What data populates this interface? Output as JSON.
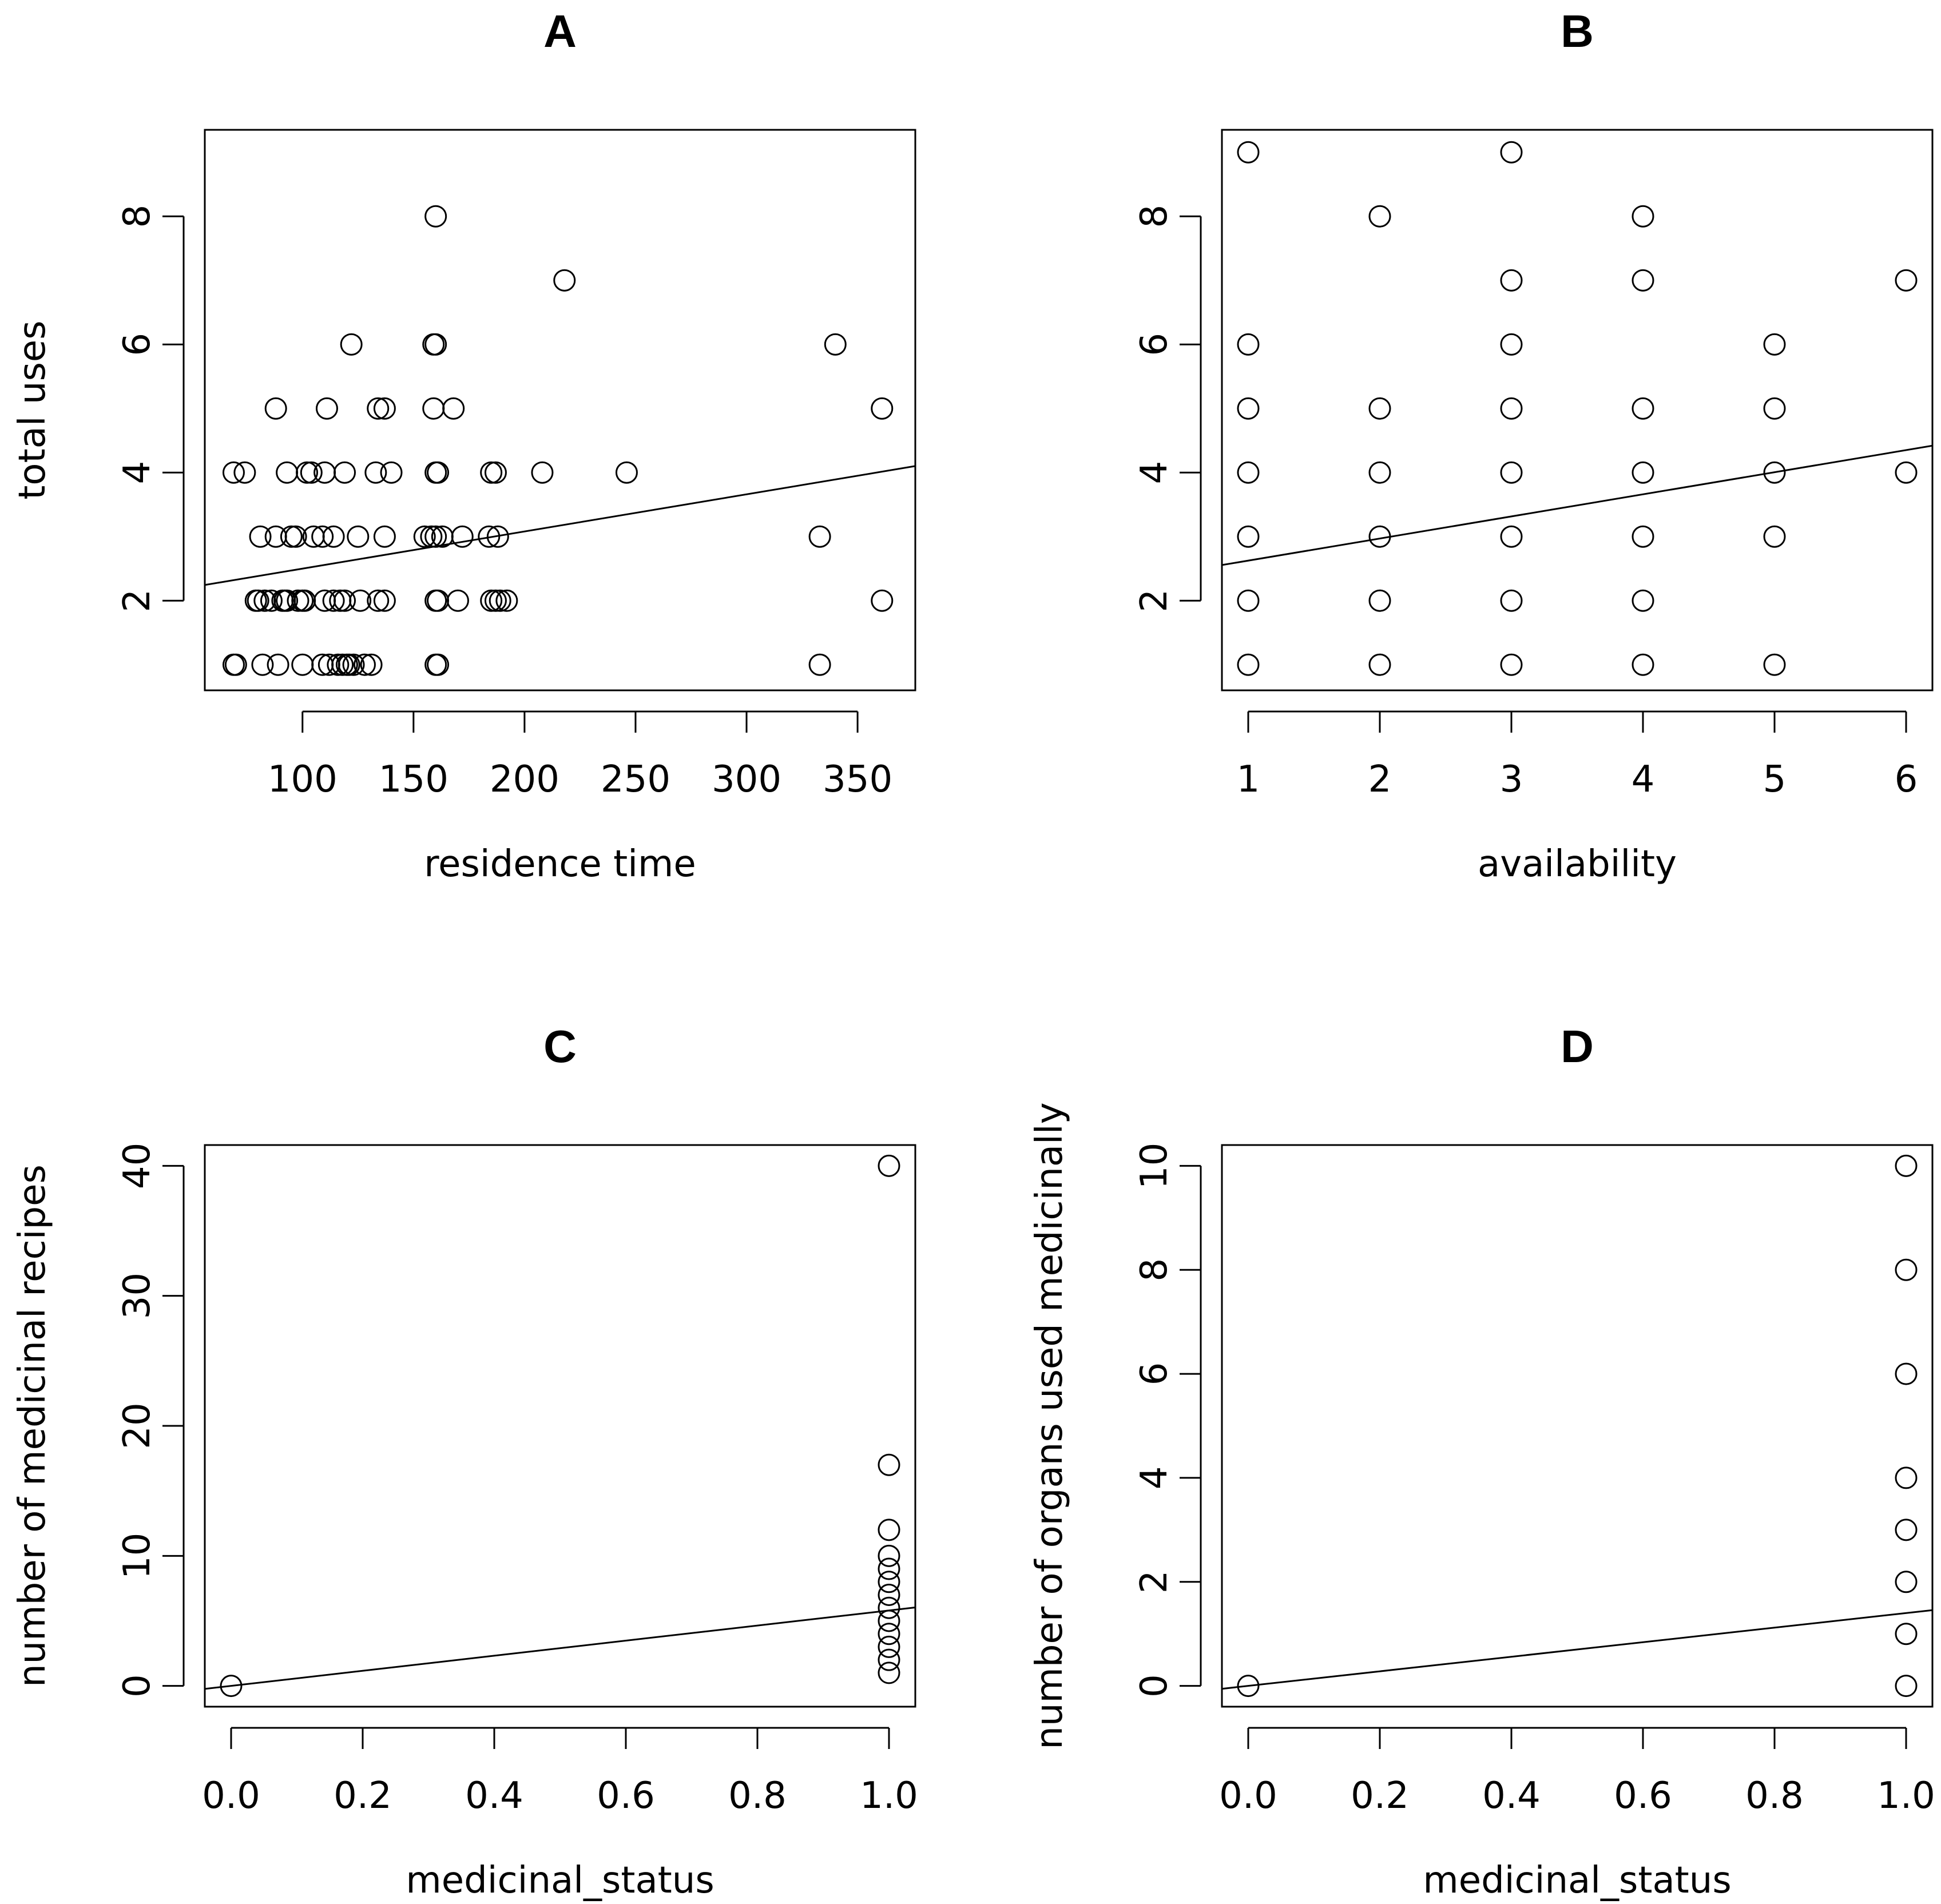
{
  "chart_data": [
    {
      "id": "A",
      "type": "scatter",
      "title": "A",
      "xlabel": "residence time",
      "ylabel": "total uses",
      "xlim": [
        56,
        376
      ],
      "ylim": [
        0.6,
        9.35
      ],
      "xticks": [
        100,
        150,
        200,
        250,
        300,
        350
      ],
      "yticks": [
        2,
        4,
        6,
        8
      ],
      "xtick_labels": [
        "100",
        "150",
        "200",
        "250",
        "300",
        "350"
      ],
      "ytick_labels": [
        "2",
        "4",
        "6",
        "8"
      ],
      "x": [
        69,
        70,
        82,
        89,
        100,
        109,
        112,
        116,
        118,
        120,
        121,
        123,
        128,
        131,
        160,
        161,
        333,
        79,
        80,
        83,
        86,
        91,
        92,
        93,
        98,
        100,
        101,
        110,
        114,
        117,
        119,
        126,
        134,
        137,
        160,
        161,
        170,
        185,
        187,
        189,
        192,
        361,
        81,
        88,
        95,
        97,
        105,
        109,
        114,
        125,
        137,
        155,
        158,
        160,
        163,
        172,
        184,
        188,
        333,
        69,
        74,
        93,
        102,
        104,
        110,
        119,
        133,
        140,
        160,
        161,
        185,
        187,
        208,
        246,
        88,
        111,
        134,
        137,
        159,
        168,
        361,
        122,
        159,
        160,
        340,
        218,
        160
      ],
      "y": [
        1,
        1,
        1,
        1,
        1,
        1,
        1,
        1,
        1,
        1,
        1,
        1,
        1,
        1,
        1,
        1,
        1,
        2,
        2,
        2,
        2,
        2,
        2,
        2,
        2,
        2,
        2,
        2,
        2,
        2,
        2,
        2,
        2,
        2,
        2,
        2,
        2,
        2,
        2,
        2,
        2,
        2,
        3,
        3,
        3,
        3,
        3,
        3,
        3,
        3,
        3,
        3,
        3,
        3,
        3,
        3,
        3,
        3,
        3,
        4,
        4,
        4,
        4,
        4,
        4,
        4,
        4,
        4,
        4,
        4,
        4,
        4,
        4,
        4,
        5,
        5,
        5,
        5,
        5,
        5,
        5,
        6,
        6,
        6,
        6,
        7,
        8
      ],
      "fit_line": {
        "intercept": 1.92,
        "slope": 0.0058
      }
    },
    {
      "id": "B",
      "type": "scatter",
      "title": "B",
      "xlabel": "availability",
      "ylabel": "",
      "xlim": [
        0.8,
        6.2
      ],
      "ylim": [
        0.6,
        9.35
      ],
      "xticks": [
        1,
        2,
        3,
        4,
        5,
        6
      ],
      "yticks": [
        2,
        4,
        6,
        8
      ],
      "xtick_labels": [
        "1",
        "2",
        "3",
        "4",
        "5",
        "6"
      ],
      "ytick_labels": [
        "2",
        "4",
        "6",
        "8"
      ],
      "x": [
        1,
        1,
        1,
        1,
        1,
        1,
        1,
        2,
        2,
        2,
        2,
        2,
        2,
        3,
        3,
        3,
        3,
        3,
        3,
        3,
        3,
        4,
        4,
        4,
        4,
        4,
        4,
        4,
        5,
        5,
        5,
        5,
        5,
        6,
        6
      ],
      "y": [
        1,
        2,
        3,
        4,
        5,
        6,
        9,
        1,
        2,
        3,
        4,
        5,
        8,
        1,
        2,
        3,
        4,
        5,
        6,
        7,
        9,
        1,
        2,
        3,
        4,
        5,
        7,
        8,
        1,
        3,
        4,
        5,
        6,
        4,
        7
      ],
      "fit_line": {
        "intercept": 2.28,
        "slope": 0.345
      }
    },
    {
      "id": "C",
      "type": "scatter",
      "title": "C",
      "xlabel": "medicinal_status",
      "ylabel": "number of medicinal recipes",
      "xlim": [
        -0.04,
        1.04
      ],
      "ylim": [
        -1.6,
        41.6
      ],
      "xticks": [
        0.0,
        0.2,
        0.4,
        0.6,
        0.8,
        1.0
      ],
      "yticks": [
        0,
        10,
        20,
        30,
        40
      ],
      "xtick_labels": [
        "0.0",
        "0.2",
        "0.4",
        "0.6",
        "0.8",
        "1.0"
      ],
      "ytick_labels": [
        "0",
        "10",
        "20",
        "30",
        "40"
      ],
      "x": [
        0,
        1,
        1,
        1,
        1,
        1,
        1,
        1,
        1,
        1,
        1,
        1,
        1,
        1
      ],
      "y": [
        0,
        1,
        2,
        3,
        4,
        5,
        6,
        7,
        8,
        9,
        10,
        12,
        17,
        40
      ],
      "fit_line": {
        "intercept": 0.0,
        "slope": 5.8
      }
    },
    {
      "id": "D",
      "type": "scatter",
      "title": "D",
      "xlabel": "medicinal_status",
      "ylabel": "number of organs used medicinally",
      "xlim": [
        -0.04,
        1.04
      ],
      "ylim": [
        -0.4,
        10.4
      ],
      "xticks": [
        0.0,
        0.2,
        0.4,
        0.6,
        0.8,
        1.0
      ],
      "yticks": [
        0,
        2,
        4,
        6,
        8,
        10
      ],
      "xtick_labels": [
        "0.0",
        "0.2",
        "0.4",
        "0.6",
        "0.8",
        "1.0"
      ],
      "ytick_labels": [
        "0",
        "2",
        "4",
        "6",
        "8",
        "10"
      ],
      "x": [
        0,
        1,
        1,
        1,
        1,
        1,
        1,
        1,
        1
      ],
      "y": [
        0,
        0,
        1,
        2,
        3,
        4,
        6,
        8,
        10
      ],
      "fit_line": {
        "intercept": 0.0,
        "slope": 1.4
      }
    }
  ]
}
